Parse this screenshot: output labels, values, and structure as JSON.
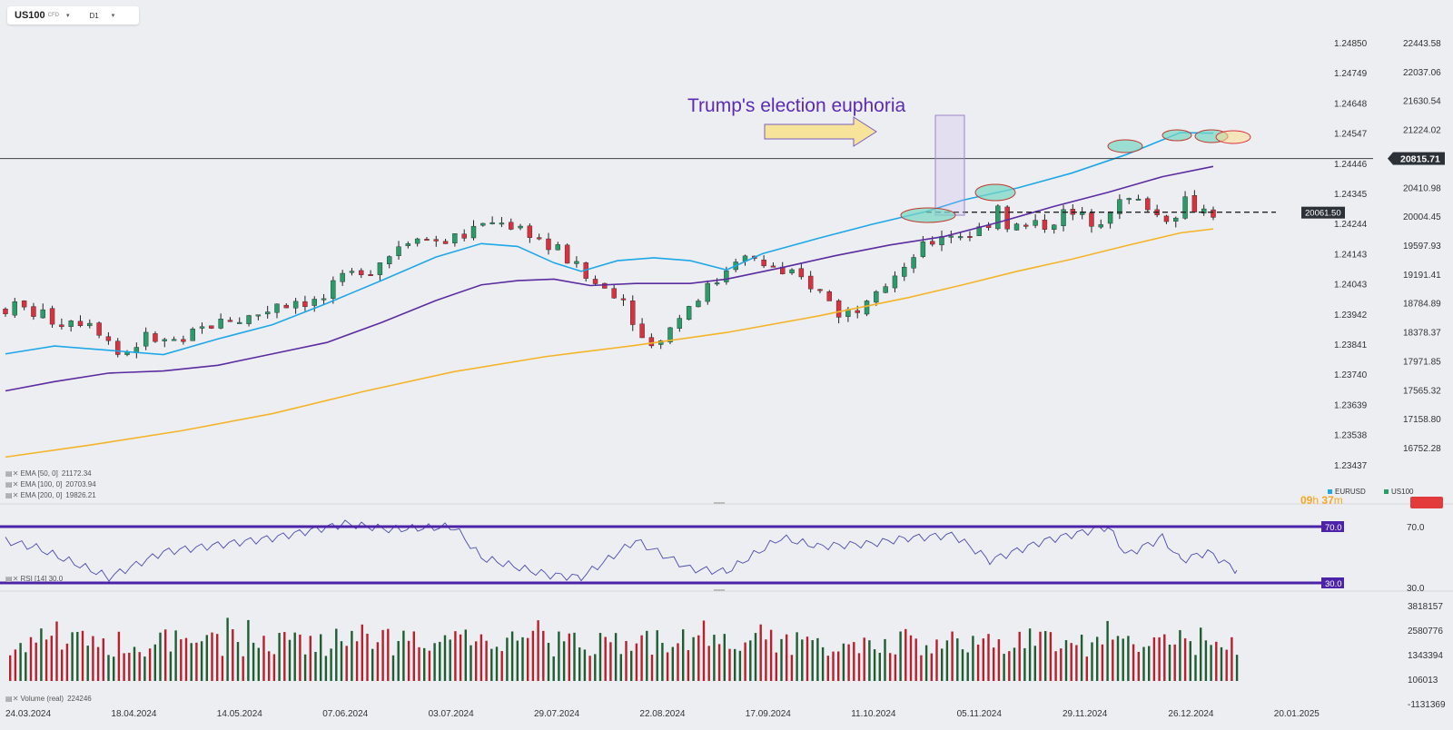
{
  "toolbar": {
    "symbol": "US100",
    "instrument_type": "CFD",
    "timeframe": "D1",
    "caret": "▾"
  },
  "chart_data": {
    "type": "candlestick",
    "annotation": "Trump's election euphoria",
    "last_price": "20815.71",
    "support_label": "20061.50",
    "support_level": 20061.5,
    "right_axis_labels": [
      "22443.58",
      "22037.06",
      "21630.54",
      "21224.02",
      "20815.71",
      "20410.98",
      "20004.45",
      "19597.93",
      "19191.41",
      "18784.89",
      "18378.37",
      "17971.85",
      "17565.32",
      "17158.80",
      "16752.28"
    ],
    "left_axis_labels": [
      "1.24850",
      "1.24749",
      "1.24648",
      "1.24547",
      "1.24446",
      "1.24345",
      "1.24244",
      "1.24143",
      "1.24043",
      "1.23942",
      "1.23841",
      "1.23740",
      "1.23639",
      "1.23538",
      "1.23437"
    ],
    "x_labels": [
      "24.03.2024",
      "18.04.2024",
      "14.05.2024",
      "07.06.2024",
      "03.07.2024",
      "29.07.2024",
      "22.08.2024",
      "17.09.2024",
      "11.10.2024",
      "05.11.2024",
      "29.11.2024",
      "26.12.2024",
      "20.01.2025"
    ],
    "ema_legend": [
      {
        "icons": "▤ ✕",
        "label": "EMA [50, 0]",
        "value": "21172.34",
        "color": "#1ea7e8"
      },
      {
        "icons": "▤ ✕",
        "label": "EMA [100, 0]",
        "value": "20703.94",
        "color": "#5a2ca0"
      },
      {
        "icons": "▤ ✕",
        "label": "EMA [200, 0]",
        "value": "19826.21",
        "color": "#f5b428"
      }
    ],
    "rsi": {
      "label": "RSI [14] 30.0",
      "upper": "70.0",
      "lower": "30.0",
      "axis_upper": "70.0",
      "axis_lower": "30.0"
    },
    "volume": {
      "label": "Volume (real)",
      "value": "224246",
      "axis_labels": [
        "3818157",
        "2580776",
        "1343394",
        "106013",
        "-1131369"
      ]
    },
    "markers": {
      "eurusd": "EURUSD",
      "us100": "US100"
    },
    "timer": {
      "hours": "09",
      "h": "h",
      "minutes": "37",
      "m": "m"
    },
    "colors": {
      "up": "#2a9c6a",
      "down": "#d9323e",
      "ema50": "#1ea7e8",
      "ema100": "#5a2ca0",
      "ema200": "#f5b428",
      "rsi_band": "#4b22a8",
      "annotation": "#5b2bb5",
      "vol_up": "#1e5e32",
      "vol_down": "#b8202e"
    }
  }
}
